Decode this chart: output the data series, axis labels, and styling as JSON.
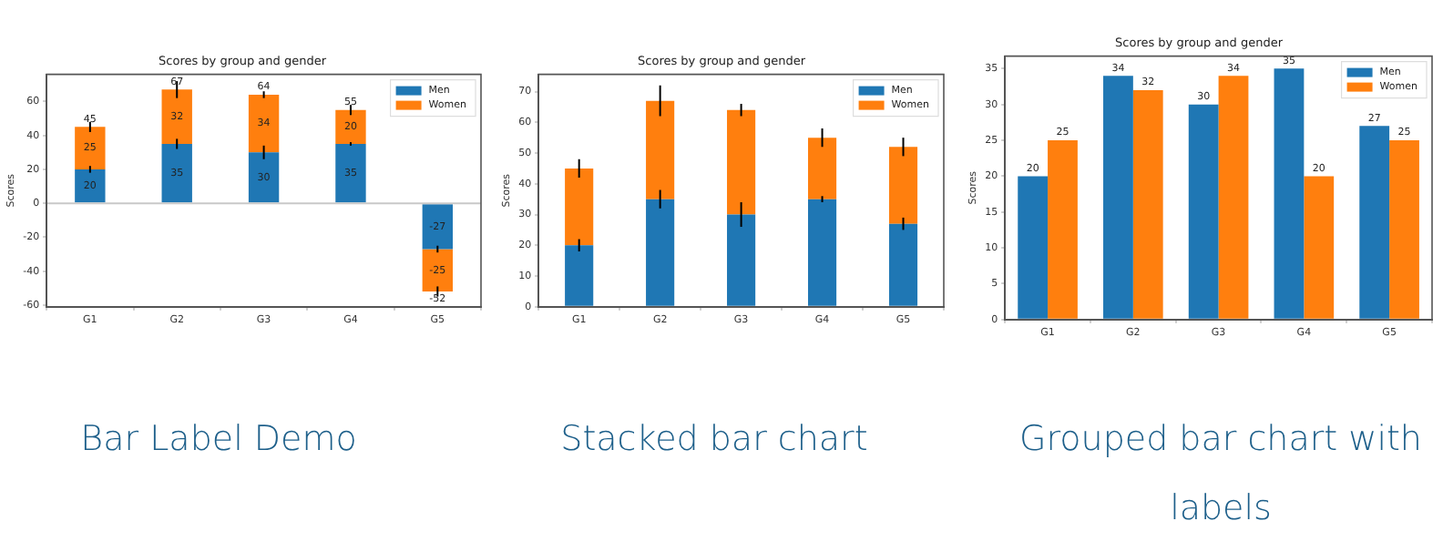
{
  "chart_data": [
    {
      "type": "bar",
      "title": "Scores by group and gender",
      "ylabel": "Scores",
      "categories": [
        "G1",
        "G2",
        "G3",
        "G4",
        "G5"
      ],
      "stacked": true,
      "series": [
        {
          "name": "Men",
          "color": "#1f77b4",
          "values": [
            20,
            35,
            30,
            35,
            -27
          ],
          "errors": [
            2,
            3,
            4,
            1,
            2
          ]
        },
        {
          "name": "Women",
          "color": "#ff7f0e",
          "values": [
            25,
            32,
            34,
            20,
            -25
          ],
          "errors": [
            3,
            5,
            2,
            3,
            3
          ]
        }
      ],
      "ylim": [
        -61,
        76
      ],
      "yticks": [
        -60,
        -40,
        -20,
        0,
        20,
        40,
        60
      ],
      "data_labels": true,
      "totals": [
        "45",
        "67",
        "64",
        "55",
        "-52"
      ],
      "ref_lines": [
        {
          "axis": "y",
          "value": 0,
          "color": "#c8c8c8"
        }
      ],
      "legend": "top right",
      "annotations": [
        "Bar Label Demo"
      ]
    },
    {
      "type": "bar",
      "title": "Scores by group and gender",
      "ylabel": "Scores",
      "categories": [
        "G1",
        "G2",
        "G3",
        "G4",
        "G5"
      ],
      "stacked": true,
      "series": [
        {
          "name": "Men",
          "color": "#1f77b4",
          "values": [
            20,
            35,
            30,
            35,
            27
          ],
          "errors": [
            2,
            3,
            4,
            1,
            2
          ]
        },
        {
          "name": "Women",
          "color": "#ff7f0e",
          "values": [
            25,
            32,
            34,
            20,
            25
          ],
          "errors": [
            3,
            5,
            2,
            3,
            3
          ]
        }
      ],
      "ylim": [
        0,
        75.6
      ],
      "yticks": [
        0,
        10,
        20,
        30,
        40,
        50,
        60,
        70
      ],
      "legend": "top right",
      "annotations": [
        "Stacked bar chart"
      ]
    },
    {
      "type": "bar",
      "title": "Scores by group and gender",
      "ylabel": "Scores",
      "categories": [
        "G1",
        "G2",
        "G3",
        "G4",
        "G5"
      ],
      "series": [
        {
          "name": "Men",
          "color": "#1f77b4",
          "values": [
            20,
            34,
            30,
            35,
            27
          ]
        },
        {
          "name": "Women",
          "color": "#ff7f0e",
          "values": [
            25,
            32,
            34,
            20,
            25
          ]
        }
      ],
      "ylim": [
        0,
        36.75
      ],
      "yticks": [
        0,
        5,
        10,
        15,
        20,
        25,
        30,
        35
      ],
      "data_labels": true,
      "legend": "top right",
      "annotations": [
        "Grouped bar chart with labels"
      ]
    }
  ]
}
